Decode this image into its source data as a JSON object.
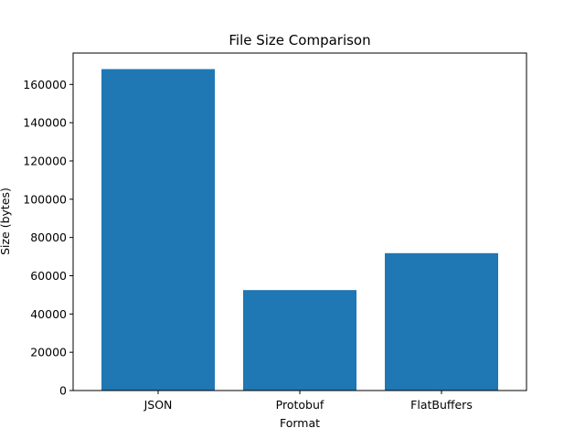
{
  "chart_data": {
    "type": "bar",
    "title": "File Size Comparison",
    "xlabel": "Format",
    "ylabel": "Size (bytes)",
    "categories": [
      "JSON",
      "Protobuf",
      "FlatBuffers"
    ],
    "values": [
      168000,
      52500,
      71800
    ],
    "ylim": [
      0,
      176400
    ],
    "yticks": [
      0,
      20000,
      40000,
      60000,
      80000,
      100000,
      120000,
      140000,
      160000
    ],
    "ytick_labels": [
      "0",
      "20000",
      "40000",
      "60000",
      "80000",
      "100000",
      "120000",
      "140000",
      "160000"
    ],
    "bar_color": "#1f77b4",
    "grid": false,
    "legend": "none"
  }
}
